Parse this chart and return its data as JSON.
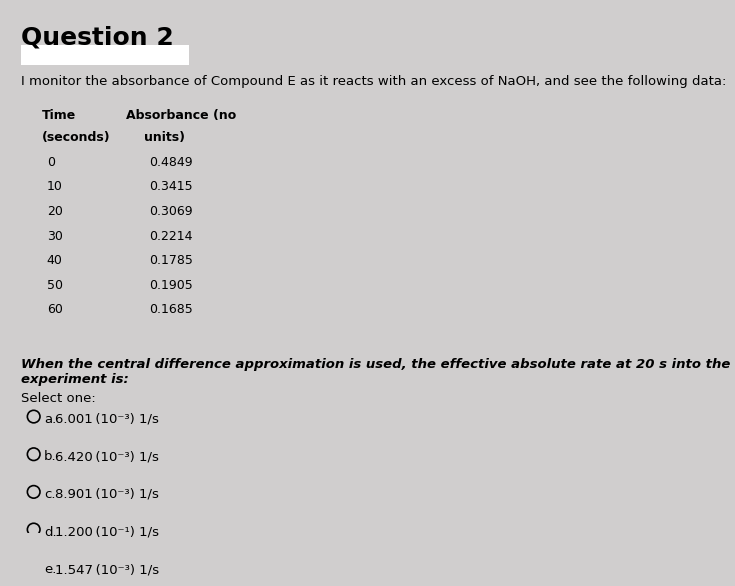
{
  "title": "Question 2",
  "highlight_box": true,
  "intro_text": "I monitor the absorbance of Compound E as it reacts with an excess of NaOH, and see the following data:",
  "table_header1": "Time",
  "table_header2": "Absorbance (no",
  "table_subheader1": "(seconds)",
  "table_subheader2": "units)",
  "table_data": [
    [
      0,
      "0.4849"
    ],
    [
      10,
      "0.3415"
    ],
    [
      20,
      "0.3069"
    ],
    [
      30,
      "0.2214"
    ],
    [
      40,
      "0.1785"
    ],
    [
      50,
      "0.1905"
    ],
    [
      60,
      "0.1685"
    ]
  ],
  "question_text": "When the central difference approximation is used, the effective absolute rate at 20 s into the experiment is:",
  "select_text": "Select one:",
  "options": [
    [
      "a.",
      "6.001 (10⁻³) 1/s"
    ],
    [
      "b.",
      "6.420 (10⁻³) 1/s"
    ],
    [
      "c.",
      "8.901 (10⁻³) 1/s"
    ],
    [
      "d.",
      "1.200 (10⁻¹) 1/s"
    ],
    [
      "e.",
      "1.547 (10⁻³) 1/s"
    ]
  ],
  "bg_color": "#d0cece",
  "highlight_color": "#ffffff",
  "text_color": "#000000",
  "font_size_title": 18,
  "font_size_body": 9.5,
  "font_size_table": 9,
  "font_size_options": 9.5
}
